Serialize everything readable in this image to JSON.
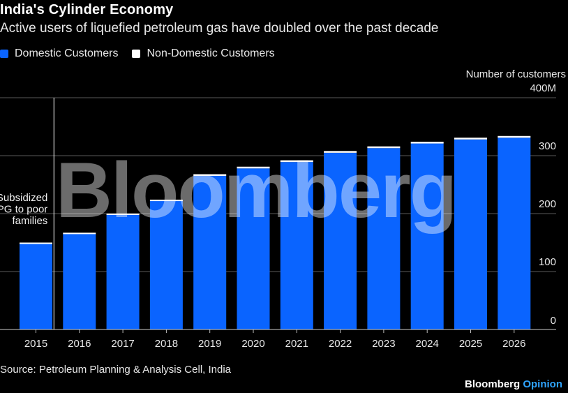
{
  "title": "India's Cylinder Economy",
  "subtitle": "Active users of liquefied petroleum gas have doubled over the past decade",
  "legend": [
    {
      "label": "Domestic Customers",
      "color": "#0a64ff"
    },
    {
      "label": "Non-Domestic Customers",
      "color": "#ffffff"
    }
  ],
  "source": "Source: Petroleum Planning & Analysis Cell, India",
  "brand": {
    "name": "Bloomberg",
    "suffix": "Opinion"
  },
  "watermark": "Bloomberg",
  "chart_data": {
    "type": "bar",
    "stacked": true,
    "categories": [
      "2015",
      "2016",
      "2017",
      "2018",
      "2019",
      "2020",
      "2021",
      "2022",
      "2023",
      "2024",
      "2025",
      "2026"
    ],
    "series": [
      {
        "name": "Domestic Customers",
        "color": "#0a64ff",
        "values": [
          148,
          165,
          198,
          222,
          265,
          278,
          289,
          305,
          313,
          321,
          328,
          331
        ]
      },
      {
        "name": "Non-Domestic Customers",
        "color": "#ffffff",
        "values": [
          2,
          2,
          2,
          2,
          3,
          3,
          3,
          3,
          3,
          3,
          3,
          3
        ]
      }
    ],
    "ylabel": "Number of customers",
    "ylim": [
      0,
      400
    ],
    "yticks": [
      {
        "value": 0,
        "label": "0"
      },
      {
        "value": 100,
        "label": "100"
      },
      {
        "value": 200,
        "label": "200"
      },
      {
        "value": 300,
        "label": "300"
      },
      {
        "value": 400,
        "label": "400M"
      }
    ],
    "grid": true,
    "annotation": {
      "category": "2016",
      "lines": [
        "Subsidized",
        "LPG to poor",
        "families"
      ]
    }
  }
}
